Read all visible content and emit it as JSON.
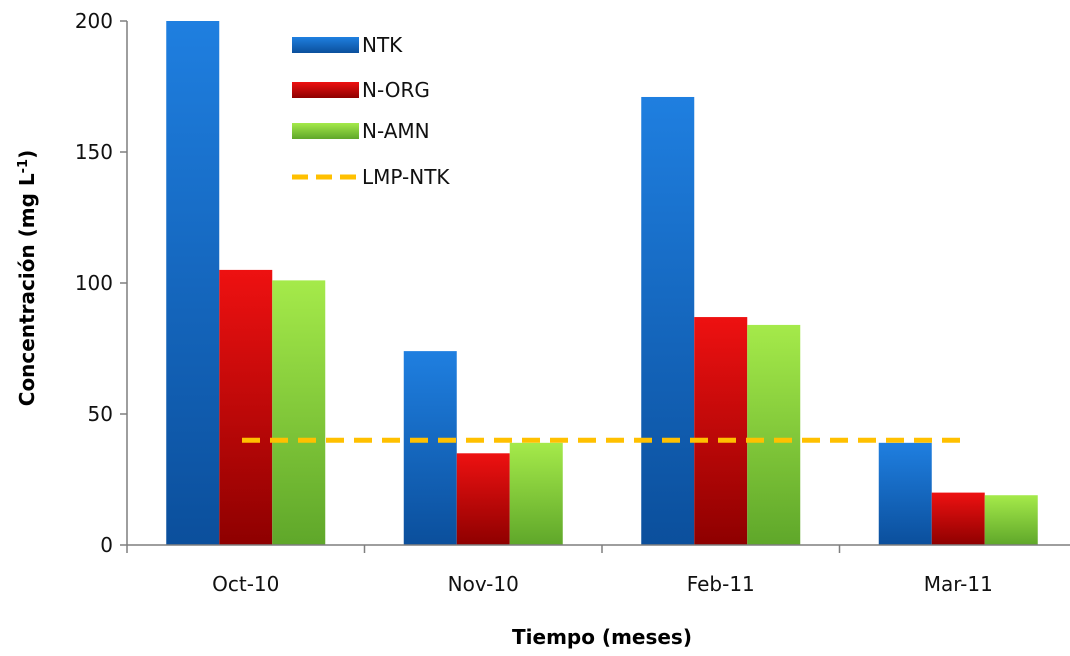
{
  "chart_data": {
    "type": "bar",
    "title": "",
    "xlabel": "Tiempo (meses)",
    "ylabel": "Concentración (mg L",
    "ylabel_superscript": "-1",
    "ylabel_suffix": ")",
    "ylim": [
      0,
      200
    ],
    "yticks": [
      0,
      50,
      100,
      150,
      200
    ],
    "ytick_labels": [
      "0",
      "50",
      "100",
      "150",
      "200"
    ],
    "categories": [
      "Oct-10",
      "Nov-10",
      "Feb-11",
      "Mar-11"
    ],
    "series": [
      {
        "name": "NTK",
        "kind": "bar",
        "values": [
          200,
          74,
          171,
          39
        ],
        "color_top": "#1f7fe0",
        "color_bottom": "#0b4f9c"
      },
      {
        "name": "N-ORG",
        "kind": "bar",
        "values": [
          105,
          35,
          87,
          20
        ],
        "color_top": "#ee1111",
        "color_bottom": "#8e0000"
      },
      {
        "name": "N-AMN",
        "kind": "bar",
        "values": [
          101,
          39,
          84,
          19
        ],
        "color_top": "#a5ea4a",
        "color_bottom": "#5fa72a"
      },
      {
        "name": "LMP-NTK",
        "kind": "line",
        "style": "dashed",
        "values": [
          40,
          40,
          40,
          40
        ],
        "color": "#ffc000"
      }
    ],
    "legend_position": "top-center",
    "grid": false
  }
}
